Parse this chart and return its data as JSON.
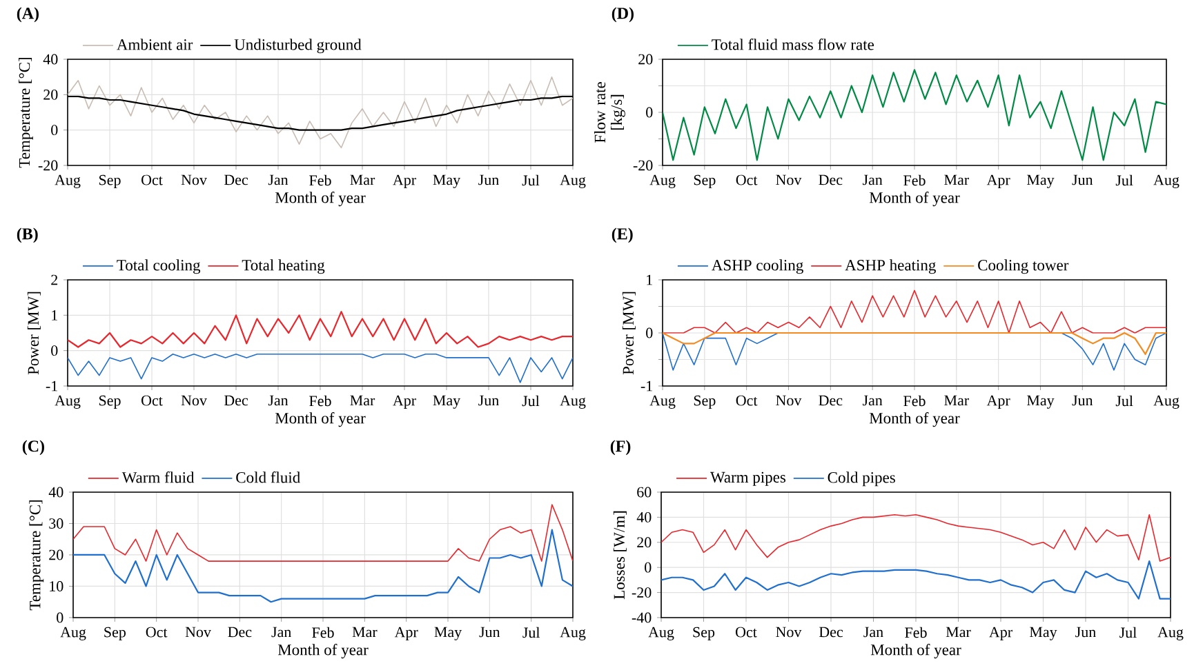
{
  "chart_data": [
    {
      "type": "line",
      "title": "(A)",
      "xlabel": "Month of year",
      "ylabel": "Temperature [°C]",
      "legend": "top",
      "grid": true,
      "categories": [
        "Aug",
        null,
        null,
        null,
        "Sep",
        null,
        null,
        null,
        "Oct",
        null,
        null,
        null,
        "Nov",
        null,
        null,
        null,
        "Dec",
        null,
        null,
        null,
        "Jan",
        null,
        null,
        null,
        "Feb",
        null,
        null,
        null,
        "Mar",
        null,
        null,
        null,
        "Apr",
        null,
        null,
        null,
        "May",
        null,
        null,
        null,
        "Jun",
        null,
        null,
        null,
        "Jul",
        null,
        null,
        null,
        "Aug"
      ],
      "ylim": [
        -20,
        40
      ],
      "yticks": [
        -20,
        0,
        20,
        40
      ],
      "series": [
        {
          "name": "Ambient air",
          "color": "#c8bcb3",
          "values": [
            20,
            28,
            12,
            25,
            14,
            20,
            8,
            24,
            10,
            18,
            6,
            14,
            4,
            14,
            6,
            10,
            -1,
            8,
            0,
            8,
            -2,
            4,
            -8,
            5,
            -5,
            -2,
            -10,
            4,
            12,
            2,
            10,
            2,
            16,
            4,
            18,
            2,
            14,
            4,
            20,
            8,
            22,
            12,
            26,
            14,
            28,
            14,
            30,
            14,
            18
          ]
        },
        {
          "name": "Undisturbed ground",
          "color": "#000000",
          "values": [
            19,
            19,
            18,
            18,
            17,
            17,
            16,
            15,
            14,
            13,
            12,
            11,
            9,
            8,
            7,
            6,
            5,
            4,
            3,
            2,
            1,
            1,
            0,
            0,
            0,
            0,
            0,
            1,
            1,
            2,
            3,
            4,
            5,
            6,
            7,
            8,
            9,
            11,
            12,
            13,
            14,
            15,
            16,
            17,
            17,
            18,
            18,
            19,
            19
          ]
        }
      ]
    },
    {
      "type": "line",
      "title": "(D)",
      "xlabel": "Month of year",
      "ylabel": "Flow rate [kg/s]",
      "legend": "top",
      "grid": true,
      "categories": [
        "Aug",
        null,
        null,
        null,
        "Sep",
        null,
        null,
        null,
        "Oct",
        null,
        null,
        null,
        "Nov",
        null,
        null,
        null,
        "Dec",
        null,
        null,
        null,
        "Jan",
        null,
        null,
        null,
        "Feb",
        null,
        null,
        null,
        "Mar",
        null,
        null,
        null,
        "Apr",
        null,
        null,
        null,
        "May",
        null,
        null,
        null,
        "Jun",
        null,
        null,
        null,
        "Jul",
        null,
        null,
        null,
        "Aug"
      ],
      "ylim": [
        -20,
        20
      ],
      "yticks": [
        -20,
        {
          "value": -10,
          "label": null
        },
        0,
        {
          "value": 10,
          "label": null
        },
        20
      ],
      "series": [
        {
          "name": "Total fluid mass flow rate",
          "color": "#008a45",
          "values": [
            0,
            -18,
            -2,
            -16,
            2,
            -8,
            5,
            -6,
            3,
            -18,
            2,
            -10,
            5,
            -3,
            6,
            -2,
            8,
            -2,
            10,
            0,
            14,
            2,
            15,
            4,
            16,
            5,
            15,
            3,
            14,
            4,
            12,
            2,
            14,
            -5,
            14,
            -2,
            4,
            -6,
            8,
            -5,
            -18,
            2,
            -18,
            0,
            -5,
            5,
            -15,
            4,
            3
          ]
        }
      ]
    },
    {
      "type": "line",
      "title": "(B)",
      "xlabel": "Month of year",
      "ylabel": "Power [MW]",
      "legend": "top",
      "grid": true,
      "categories": [
        "Aug",
        null,
        null,
        null,
        "Sep",
        null,
        null,
        null,
        "Oct",
        null,
        null,
        null,
        "Nov",
        null,
        null,
        null,
        "Dec",
        null,
        null,
        null,
        "Jan",
        null,
        null,
        null,
        "Feb",
        null,
        null,
        null,
        "Mar",
        null,
        null,
        null,
        "Apr",
        null,
        null,
        null,
        "May",
        null,
        null,
        null,
        "Jun",
        null,
        null,
        null,
        "Jul",
        null,
        null,
        null,
        "Aug"
      ],
      "ylim": [
        -1,
        2
      ],
      "yticks": [
        -1,
        0,
        1,
        2
      ],
      "series": [
        {
          "name": "Total cooling",
          "color": "#1f6fcf",
          "values": [
            -0.2,
            -0.7,
            -0.3,
            -0.7,
            -0.2,
            -0.3,
            -0.2,
            -0.8,
            -0.2,
            -0.3,
            -0.1,
            -0.2,
            -0.1,
            -0.2,
            -0.1,
            -0.2,
            -0.1,
            -0.2,
            -0.1,
            -0.1,
            -0.1,
            -0.1,
            -0.1,
            -0.1,
            -0.1,
            -0.1,
            -0.1,
            -0.1,
            -0.1,
            -0.2,
            -0.1,
            -0.1,
            -0.1,
            -0.2,
            -0.1,
            -0.1,
            -0.2,
            -0.2,
            -0.2,
            -0.2,
            -0.2,
            -0.7,
            -0.2,
            -0.9,
            -0.2,
            -0.6,
            -0.2,
            -0.8,
            -0.2
          ]
        },
        {
          "name": "Total heating",
          "color": "#e8262b",
          "values": [
            0.3,
            0.1,
            0.3,
            0.2,
            0.5,
            0.1,
            0.3,
            0.2,
            0.4,
            0.2,
            0.5,
            0.2,
            0.5,
            0.2,
            0.7,
            0.3,
            1.0,
            0.2,
            0.9,
            0.4,
            0.9,
            0.5,
            1.0,
            0.3,
            0.9,
            0.4,
            1.1,
            0.4,
            0.9,
            0.4,
            0.9,
            0.3,
            0.9,
            0.3,
            0.9,
            0.2,
            0.5,
            0.2,
            0.4,
            0.1,
            0.2,
            0.4,
            0.3,
            0.4,
            0.3,
            0.4,
            0.3,
            0.4,
            0.4
          ]
        }
      ]
    },
    {
      "type": "line",
      "title": "(E)",
      "xlabel": "Month of year",
      "ylabel": "Power [MW]",
      "legend": "top",
      "grid": true,
      "categories": [
        "Aug",
        null,
        null,
        null,
        "Sep",
        null,
        null,
        null,
        "Oct",
        null,
        null,
        null,
        "Nov",
        null,
        null,
        null,
        "Dec",
        null,
        null,
        null,
        "Jan",
        null,
        null,
        null,
        "Feb",
        null,
        null,
        null,
        "Mar",
        null,
        null,
        null,
        "Apr",
        null,
        null,
        null,
        "May",
        null,
        null,
        null,
        "Jun",
        null,
        null,
        null,
        "Jul",
        null,
        null,
        null,
        "Aug"
      ],
      "ylim": [
        -1,
        1
      ],
      "yticks": [
        -1,
        {
          "value": -0.5,
          "label": null
        },
        0,
        {
          "value": 0.5,
          "label": null
        },
        1
      ],
      "series": [
        {
          "name": "ASHP cooling",
          "color": "#1f6fcf",
          "values": [
            0,
            -0.7,
            -0.2,
            -0.6,
            -0.1,
            -0.1,
            -0.1,
            -0.6,
            -0.1,
            -0.2,
            -0.1,
            0,
            null,
            null,
            null,
            null,
            null,
            null,
            null,
            null,
            null,
            null,
            null,
            null,
            null,
            null,
            null,
            null,
            null,
            null,
            null,
            null,
            null,
            null,
            null,
            null,
            null,
            null,
            0,
            -0.1,
            -0.3,
            -0.6,
            -0.2,
            -0.7,
            -0.2,
            -0.5,
            -0.6,
            -0.1,
            0
          ]
        },
        {
          "name": "ASHP heating",
          "color": "#e8262b",
          "values": [
            0,
            0,
            0,
            0.1,
            0.1,
            0,
            0.2,
            0,
            0.1,
            0,
            0.2,
            0.1,
            0.2,
            0.1,
            0.3,
            0.1,
            0.5,
            0.1,
            0.6,
            0.2,
            0.7,
            0.3,
            0.7,
            0.3,
            0.8,
            0.3,
            0.7,
            0.3,
            0.6,
            0.2,
            0.6,
            0.1,
            0.6,
            0,
            0.6,
            0.1,
            0.2,
            0,
            0.4,
            0,
            0.1,
            0,
            0,
            0,
            0.1,
            0,
            0.1,
            0.1,
            0.1
          ]
        },
        {
          "name": "Cooling tower",
          "color": "#f58a1f",
          "values": [
            0,
            -0.1,
            -0.2,
            -0.2,
            -0.1,
            0,
            0,
            0,
            0,
            0,
            0,
            0,
            0,
            0,
            0,
            0,
            0,
            0,
            0,
            0,
            0,
            0,
            0,
            0,
            0,
            0,
            0,
            0,
            0,
            0,
            0,
            0,
            0,
            0,
            0,
            0,
            0,
            0,
            0,
            0,
            -0.1,
            -0.2,
            -0.1,
            -0.1,
            0,
            -0.1,
            -0.4,
            0,
            0
          ]
        }
      ]
    },
    {
      "type": "line",
      "title": "(C)",
      "xlabel": "Month of year",
      "ylabel": "Temperature [°C]",
      "legend": "top",
      "grid": true,
      "categories": [
        "Aug",
        null,
        null,
        null,
        "Sep",
        null,
        null,
        null,
        "Oct",
        null,
        null,
        null,
        "Nov",
        null,
        null,
        null,
        "Dec",
        null,
        null,
        null,
        "Jan",
        null,
        null,
        null,
        "Feb",
        null,
        null,
        null,
        "Mar",
        null,
        null,
        null,
        "Apr",
        null,
        null,
        null,
        "May",
        null,
        null,
        null,
        "Jun",
        null,
        null,
        null,
        "Jul",
        null,
        null,
        null,
        "Aug"
      ],
      "ylim": [
        0,
        40
      ],
      "yticks": [
        0,
        10,
        20,
        30,
        40
      ],
      "series": [
        {
          "name": "Warm fluid",
          "color": "#e8262b",
          "values": [
            25,
            29,
            29,
            29,
            22,
            20,
            25,
            18,
            28,
            20,
            27,
            22,
            20,
            18,
            18,
            18,
            18,
            18,
            18,
            18,
            18,
            18,
            18,
            18,
            18,
            18,
            18,
            18,
            18,
            18,
            18,
            18,
            18,
            18,
            18,
            18,
            18,
            22,
            19,
            18,
            25,
            28,
            29,
            27,
            28,
            18,
            36,
            28,
            18
          ]
        },
        {
          "name": "Cold fluid",
          "color": "#1f6fcf",
          "values": [
            20,
            20,
            20,
            20,
            14,
            11,
            18,
            10,
            20,
            12,
            20,
            14,
            8,
            8,
            8,
            7,
            7,
            7,
            7,
            5,
            6,
            6,
            6,
            6,
            6,
            6,
            6,
            6,
            6,
            7,
            7,
            7,
            7,
            7,
            7,
            8,
            8,
            13,
            10,
            8,
            19,
            19,
            20,
            19,
            20,
            10,
            28,
            12,
            10
          ]
        }
      ]
    },
    {
      "type": "line",
      "title": "(F)",
      "xlabel": "Month of year",
      "ylabel": "Losses [W/m]",
      "legend": "top",
      "grid": true,
      "categories": [
        "Aug",
        null,
        null,
        null,
        "Sep",
        null,
        null,
        null,
        "Oct",
        null,
        null,
        null,
        "Nov",
        null,
        null,
        null,
        "Dec",
        null,
        null,
        null,
        "Jan",
        null,
        null,
        null,
        "Feb",
        null,
        null,
        null,
        "Mar",
        null,
        null,
        null,
        "Apr",
        null,
        null,
        null,
        "May",
        null,
        null,
        null,
        "Jun",
        null,
        null,
        null,
        "Jul",
        null,
        null,
        null,
        "Aug"
      ],
      "ylim": [
        -40,
        60
      ],
      "yticks": [
        -40,
        -20,
        0,
        20,
        40,
        60
      ],
      "series": [
        {
          "name": "Warm pipes",
          "color": "#e8262b",
          "values": [
            20,
            28,
            30,
            28,
            12,
            18,
            30,
            14,
            30,
            18,
            8,
            16,
            20,
            22,
            26,
            30,
            33,
            35,
            38,
            40,
            40,
            41,
            42,
            41,
            42,
            40,
            38,
            35,
            33,
            32,
            31,
            30,
            28,
            25,
            22,
            18,
            20,
            15,
            30,
            14,
            32,
            20,
            30,
            25,
            26,
            6,
            42,
            5,
            8
          ]
        },
        {
          "name": "Cold pipes",
          "color": "#1f6fcf",
          "values": [
            -10,
            -8,
            -8,
            -10,
            -18,
            -15,
            -5,
            -18,
            -8,
            -12,
            -18,
            -14,
            -12,
            -15,
            -12,
            -8,
            -5,
            -6,
            -4,
            -3,
            -3,
            -3,
            -2,
            -2,
            -2,
            -3,
            -5,
            -6,
            -8,
            -10,
            -10,
            -12,
            -10,
            -14,
            -16,
            -20,
            -12,
            -10,
            -18,
            -20,
            -3,
            -8,
            -5,
            -10,
            -12,
            -25,
            5,
            -25,
            -25
          ]
        }
      ]
    }
  ]
}
